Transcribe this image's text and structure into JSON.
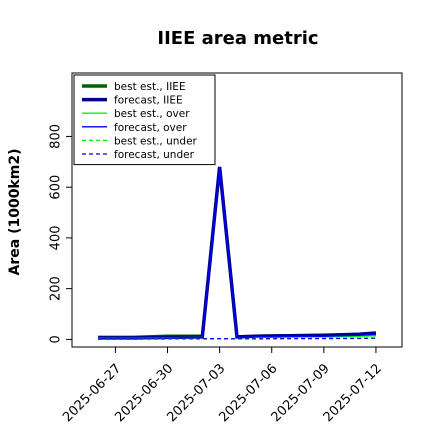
{
  "chart_data": {
    "type": "line",
    "title": "IIEE area metric",
    "ylabel": "Area (1000km2)",
    "xlabel": "",
    "ylim": [
      -30,
      1050
    ],
    "yticks": [
      0,
      200,
      400,
      600,
      800
    ],
    "xticks": [
      {
        "label": "2025-06-27",
        "day": 1,
        "highlight": false
      },
      {
        "label": "2025-06-30",
        "day": 4,
        "highlight": false
      },
      {
        "label": "2025-07-03",
        "day": 7,
        "highlight": true
      },
      {
        "label": "2025-07-06",
        "day": 10,
        "highlight": false
      },
      {
        "label": "2025-07-09",
        "day": 13,
        "highlight": false
      },
      {
        "label": "2025-07-12",
        "day": 16,
        "highlight": false
      }
    ],
    "x": [
      0,
      2,
      4,
      6,
      7,
      8,
      9,
      11,
      13,
      15,
      16
    ],
    "legend_position": "top-left",
    "series": [
      {
        "name": "best est., IIEE",
        "color": "#006400",
        "style": "solid",
        "width": 3.5,
        "values": [
          8,
          8,
          12,
          12,
          null,
          null,
          12,
          14,
          15,
          18,
          20
        ]
      },
      {
        "name": "forecast, IIEE",
        "color": "#00008b",
        "style": "solid",
        "width": 3.5,
        "values": [
          6,
          6,
          8,
          10,
          680,
          10,
          12,
          14,
          16,
          20,
          25
        ]
      },
      {
        "name": "best est., over",
        "color": "#00ff00",
        "style": "solid",
        "width": 1.3,
        "values": [
          5,
          5,
          7,
          8,
          null,
          null,
          8,
          9,
          10,
          12,
          14
        ]
      },
      {
        "name": "forecast, over",
        "color": "#0000ff",
        "style": "solid",
        "width": 1.3,
        "values": [
          4,
          4,
          6,
          8,
          676,
          8,
          10,
          11,
          12,
          16,
          20
        ]
      },
      {
        "name": "best est., under",
        "color": "#00ee00",
        "style": "dashed",
        "width": 1.3,
        "values": [
          2,
          2,
          3,
          3,
          3,
          3,
          3,
          3,
          4,
          4,
          5
        ]
      },
      {
        "name": "forecast, under",
        "color": "#0000ff",
        "style": "dashed",
        "width": 1.3,
        "values": [
          1,
          1,
          2,
          2,
          3,
          2,
          2,
          3,
          3,
          4,
          5
        ]
      }
    ]
  }
}
